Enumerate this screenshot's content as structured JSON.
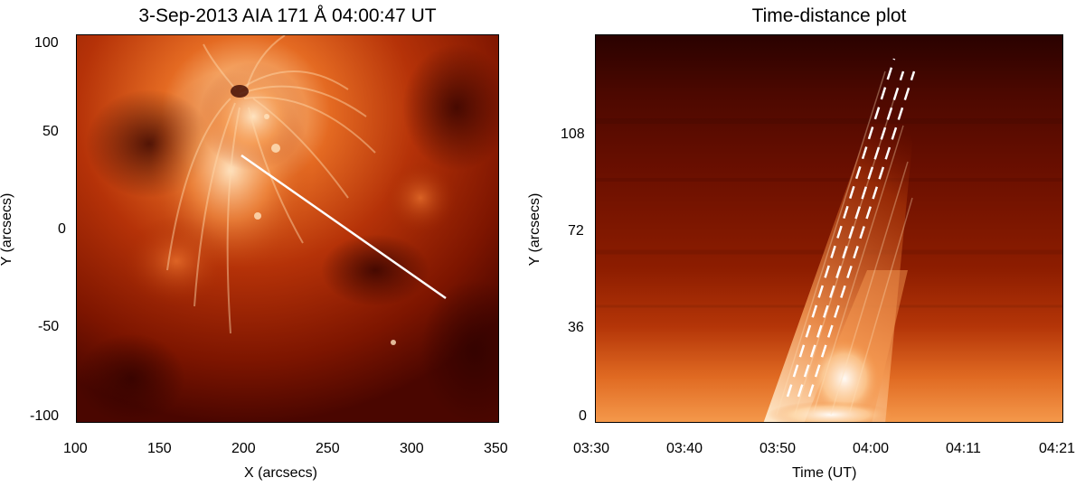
{
  "left_panel": {
    "title": "3-Sep-2013 AIA 171 Å 04:00:47 UT",
    "xlabel": "X (arcsecs)",
    "ylabel": "Y (arcsecs)",
    "xticks": [
      "100",
      "150",
      "200",
      "250",
      "300",
      "350"
    ],
    "yticks": [
      "100",
      "50",
      "0",
      "-50",
      "-100"
    ],
    "slit": {
      "x1": 197,
      "y1": 39,
      "x2": 320,
      "y2": -35,
      "color": "#ffffff"
    },
    "xlim": [
      100,
      350
    ],
    "ylim": [
      -100,
      100
    ]
  },
  "right_panel": {
    "title": "Time-distance plot",
    "xlabel": "Time (UT)",
    "ylabel": "Y (arcsecs)",
    "xticks": [
      "03:30",
      "03:40",
      "03:50",
      "04:00",
      "04:11",
      "04:21"
    ],
    "yticks": [
      "108",
      "72",
      "36",
      "0"
    ],
    "dashed_guides": 3,
    "guide_color": "#ffffff"
  },
  "colors": {
    "dark": "#3a0300",
    "mid": "#8a1a00",
    "bright": "#e0601a",
    "hot": "#ffd9a0"
  }
}
